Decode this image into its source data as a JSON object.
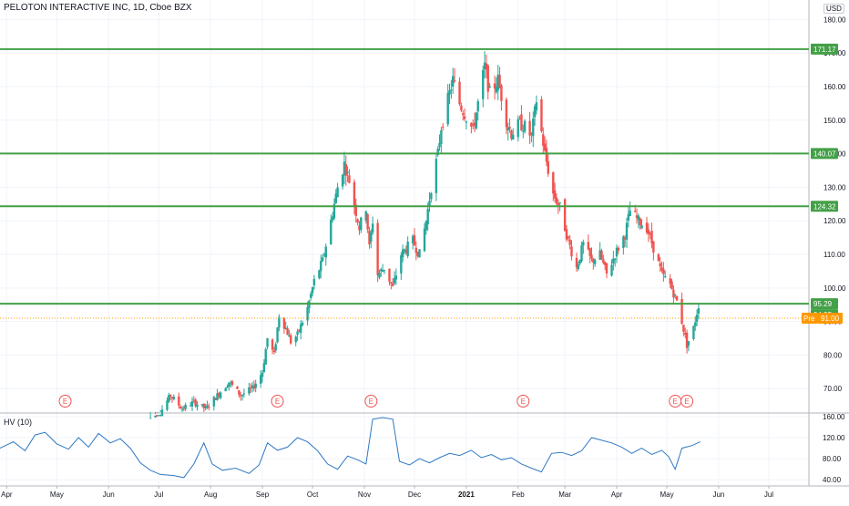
{
  "header": {
    "symbol_title": "PELOTON INTERACTIVE INC, 1D, Cboe BZX",
    "currency": "USD"
  },
  "indicator": {
    "label": "HV (10)",
    "ticks": [
      "160.00",
      "120.00",
      "80.00",
      "40.00"
    ],
    "color": "#2e78c2"
  },
  "colors": {
    "up": "#26a69a",
    "down": "#ef5350",
    "level_line": "#43a047",
    "earnings": "#ef5350",
    "premarket": "#ff9800",
    "grid": "#f0f3fa",
    "axis_text": "#131722"
  },
  "chart_data": {
    "type": "candlestick",
    "title": "PELOTON INTERACTIVE INC, 1D, Cboe BZX",
    "y_ticks": [
      180,
      170,
      160,
      150,
      140,
      130,
      120,
      110,
      100,
      90,
      80,
      70
    ],
    "ylim": [
      63,
      182
    ],
    "grid": true,
    "x_tick_labels": [
      "Apr",
      "May",
      "Jun",
      "Jul",
      "Aug",
      "Sep",
      "Oct",
      "Nov",
      "Dec",
      "2021",
      "Feb",
      "Mar",
      "Apr",
      "May",
      "Jun",
      "Jul"
    ],
    "x_ticks": [
      "2020-04-01",
      "2020-05-01",
      "2020-06-01",
      "2020-07-01",
      "2020-08-01",
      "2020-09-01",
      "2020-10-01",
      "2020-11-01",
      "2020-12-01",
      "2021-01-01",
      "2021-02-01",
      "2021-03-01",
      "2021-04-01",
      "2021-05-01",
      "2021-06-01",
      "2021-07-01"
    ],
    "xlim": [
      "2020-03-28",
      "2021-07-25"
    ],
    "price_path": [
      [
        "2020-06-25",
        61
      ],
      [
        "2020-07-02",
        63
      ],
      [
        "2020-07-08",
        68
      ],
      [
        "2020-07-15",
        64
      ],
      [
        "2020-07-22",
        66
      ],
      [
        "2020-07-29",
        64
      ],
      [
        "2020-08-05",
        68
      ],
      [
        "2020-08-12",
        72
      ],
      [
        "2020-08-19",
        68
      ],
      [
        "2020-08-26",
        70
      ],
      [
        "2020-09-01",
        75
      ],
      [
        "2020-09-04",
        85
      ],
      [
        "2020-09-08",
        80
      ],
      [
        "2020-09-11",
        92
      ],
      [
        "2020-09-15",
        88
      ],
      [
        "2020-09-18",
        84
      ],
      [
        "2020-09-22",
        86
      ],
      [
        "2020-09-28",
        94
      ],
      [
        "2020-10-02",
        102
      ],
      [
        "2020-10-07",
        108
      ],
      [
        "2020-10-12",
        120
      ],
      [
        "2020-10-16",
        130
      ],
      [
        "2020-10-20",
        137
      ],
      [
        "2020-10-23",
        132
      ],
      [
        "2020-10-26",
        125
      ],
      [
        "2020-10-29",
        118
      ],
      [
        "2020-11-02",
        124
      ],
      [
        "2020-11-04",
        112
      ],
      [
        "2020-11-06",
        120
      ],
      [
        "2020-11-09",
        104
      ],
      [
        "2020-11-13",
        106
      ],
      [
        "2020-11-18",
        100
      ],
      [
        "2020-11-23",
        110
      ],
      [
        "2020-11-30",
        114
      ],
      [
        "2020-12-04",
        110
      ],
      [
        "2020-12-08",
        120
      ],
      [
        "2020-12-11",
        130
      ],
      [
        "2020-12-15",
        140
      ],
      [
        "2020-12-17",
        148
      ],
      [
        "2020-12-21",
        156
      ],
      [
        "2020-12-24",
        162
      ],
      [
        "2020-12-28",
        155
      ],
      [
        "2020-12-31",
        152
      ],
      [
        "2021-01-05",
        147
      ],
      [
        "2021-01-08",
        155
      ],
      [
        "2021-01-12",
        166
      ],
      [
        "2021-01-15",
        158
      ],
      [
        "2021-01-20",
        162
      ],
      [
        "2021-01-25",
        150
      ],
      [
        "2021-01-28",
        146
      ],
      [
        "2021-02-02",
        149
      ],
      [
        "2021-02-05",
        148
      ],
      [
        "2021-02-09",
        145
      ],
      [
        "2021-02-12",
        156
      ],
      [
        "2021-02-17",
        140
      ],
      [
        "2021-02-22",
        128
      ],
      [
        "2021-02-26",
        124
      ],
      [
        "2021-03-03",
        114
      ],
      [
        "2021-03-08",
        106
      ],
      [
        "2021-03-12",
        113
      ],
      [
        "2021-03-17",
        108
      ],
      [
        "2021-03-22",
        110
      ],
      [
        "2021-03-26",
        104
      ],
      [
        "2021-03-31",
        110
      ],
      [
        "2021-04-06",
        116
      ],
      [
        "2021-04-09",
        123
      ],
      [
        "2021-04-14",
        120
      ],
      [
        "2021-04-19",
        118
      ],
      [
        "2021-04-23",
        112
      ],
      [
        "2021-04-28",
        104
      ],
      [
        "2021-05-03",
        101
      ],
      [
        "2021-05-07",
        96
      ],
      [
        "2021-05-10",
        90
      ],
      [
        "2021-05-13",
        83
      ],
      [
        "2021-05-17",
        88
      ],
      [
        "2021-05-20",
        95
      ]
    ],
    "horizontal_levels": [
      {
        "value": 171.17,
        "label": "171.17"
      },
      {
        "value": 140.07,
        "label": "140.07"
      },
      {
        "value": 124.32,
        "label": "124.32"
      },
      {
        "value": 95.29,
        "label": "95.29"
      }
    ],
    "price_labels": [
      {
        "value": 95.29,
        "label": "95.29",
        "color": "#26a69a"
      },
      {
        "value": 94.95,
        "label": "94.95",
        "color": "#43a047"
      }
    ],
    "premarket": {
      "label": "Pre",
      "value": 91.0,
      "text": "91.00"
    },
    "earnings_markers": [
      {
        "date": "2020-05-06",
        "label": "E"
      },
      {
        "date": "2020-09-10",
        "label": "E"
      },
      {
        "date": "2020-11-05",
        "label": "E"
      },
      {
        "date": "2021-02-04",
        "label": "E"
      },
      {
        "date": "2021-05-06",
        "label": "E"
      },
      {
        "date": "2021-05-13",
        "label": "E"
      }
    ],
    "hv_series": {
      "name": "HV (10)",
      "ylim": [
        30,
        165
      ],
      "points": [
        [
          "2020-03-28",
          100
        ],
        [
          "2020-04-05",
          112
        ],
        [
          "2020-04-12",
          95
        ],
        [
          "2020-04-18",
          125
        ],
        [
          "2020-04-24",
          130
        ],
        [
          "2020-05-01",
          108
        ],
        [
          "2020-05-08",
          98
        ],
        [
          "2020-05-14",
          120
        ],
        [
          "2020-05-20",
          102
        ],
        [
          "2020-05-26",
          128
        ],
        [
          "2020-06-02",
          110
        ],
        [
          "2020-06-08",
          118
        ],
        [
          "2020-06-14",
          100
        ],
        [
          "2020-06-20",
          72
        ],
        [
          "2020-06-26",
          58
        ],
        [
          "2020-07-02",
          50
        ],
        [
          "2020-07-10",
          48
        ],
        [
          "2020-07-16",
          44
        ],
        [
          "2020-07-22",
          70
        ],
        [
          "2020-07-28",
          110
        ],
        [
          "2020-08-02",
          70
        ],
        [
          "2020-08-08",
          58
        ],
        [
          "2020-08-16",
          62
        ],
        [
          "2020-08-24",
          52
        ],
        [
          "2020-08-30",
          68
        ],
        [
          "2020-09-04",
          110
        ],
        [
          "2020-09-10",
          96
        ],
        [
          "2020-09-16",
          102
        ],
        [
          "2020-09-22",
          120
        ],
        [
          "2020-09-28",
          112
        ],
        [
          "2020-10-04",
          95
        ],
        [
          "2020-10-10",
          70
        ],
        [
          "2020-10-16",
          60
        ],
        [
          "2020-10-22",
          85
        ],
        [
          "2020-10-28",
          78
        ],
        [
          "2020-11-02",
          70
        ],
        [
          "2020-11-06",
          155
        ],
        [
          "2020-11-12",
          158
        ],
        [
          "2020-11-18",
          155
        ],
        [
          "2020-11-22",
          75
        ],
        [
          "2020-11-28",
          68
        ],
        [
          "2020-12-04",
          80
        ],
        [
          "2020-12-10",
          72
        ],
        [
          "2020-12-16",
          82
        ],
        [
          "2020-12-22",
          90
        ],
        [
          "2020-12-28",
          86
        ],
        [
          "2021-01-04",
          96
        ],
        [
          "2021-01-10",
          82
        ],
        [
          "2021-01-16",
          88
        ],
        [
          "2021-01-22",
          78
        ],
        [
          "2021-01-28",
          82
        ],
        [
          "2021-02-03",
          70
        ],
        [
          "2021-02-09",
          62
        ],
        [
          "2021-02-15",
          55
        ],
        [
          "2021-02-21",
          90
        ],
        [
          "2021-02-27",
          92
        ],
        [
          "2021-03-05",
          86
        ],
        [
          "2021-03-11",
          95
        ],
        [
          "2021-03-17",
          120
        ],
        [
          "2021-03-23",
          115
        ],
        [
          "2021-03-29",
          110
        ],
        [
          "2021-04-04",
          102
        ],
        [
          "2021-04-10",
          90
        ],
        [
          "2021-04-16",
          100
        ],
        [
          "2021-04-22",
          88
        ],
        [
          "2021-04-28",
          96
        ],
        [
          "2021-05-02",
          84
        ],
        [
          "2021-05-06",
          60
        ],
        [
          "2021-05-10",
          100
        ],
        [
          "2021-05-16",
          105
        ],
        [
          "2021-05-21",
          112
        ]
      ]
    }
  }
}
